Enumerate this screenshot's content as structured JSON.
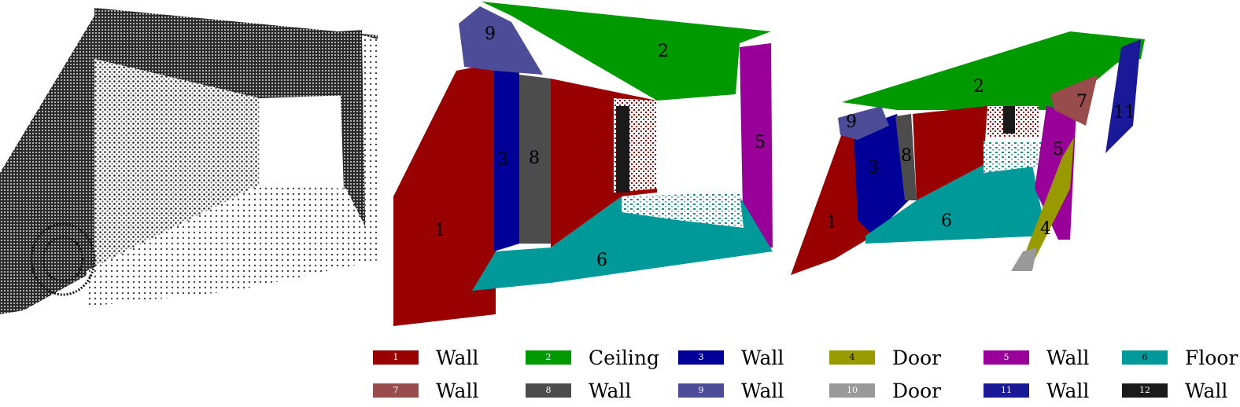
{
  "segments": {
    "middle": [
      "1",
      "2",
      "3",
      "5",
      "6",
      "8",
      "9"
    ],
    "right": [
      "1",
      "2",
      "3",
      "4",
      "5",
      "6",
      "7",
      "8",
      "9",
      "11"
    ]
  },
  "legend": [
    {
      "id": "1",
      "label": "Wall",
      "color": "#990000"
    },
    {
      "id": "2",
      "label": "Ceiling",
      "color": "#009900"
    },
    {
      "id": "3",
      "label": "Wall",
      "color": "#000099"
    },
    {
      "id": "4",
      "label": "Door",
      "color": "#999900"
    },
    {
      "id": "5",
      "label": "Wall",
      "color": "#990099"
    },
    {
      "id": "6",
      "label": "Floor",
      "color": "#009999"
    },
    {
      "id": "7",
      "label": "Wall",
      "color": "#994c4c"
    },
    {
      "id": "8",
      "label": "Wall",
      "color": "#4c4c4c"
    },
    {
      "id": "9",
      "label": "Wall",
      "color": "#4c4c99"
    },
    {
      "id": "10",
      "label": "Door",
      "color": "#999999"
    },
    {
      "id": "11",
      "label": "Wall",
      "color": "#1a1a99"
    },
    {
      "id": "12",
      "label": "Wall",
      "color": "#1a1a1a"
    }
  ]
}
